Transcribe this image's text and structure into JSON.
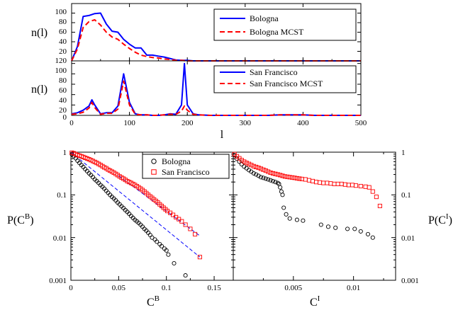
{
  "chart_data": [
    {
      "id": "bologna",
      "type": "line",
      "ylabel": "n(l)",
      "xlim": [
        0,
        500
      ],
      "ylim": [
        0,
        120
      ],
      "ytick_labels": [
        "120",
        "100",
        "80",
        "60",
        "40",
        "20"
      ],
      "series": [
        {
          "name": "Bologna",
          "color": "#0000ff",
          "dash": "solid",
          "x": [
            0,
            10,
            20,
            30,
            40,
            50,
            60,
            70,
            80,
            90,
            100,
            110,
            120,
            130,
            140,
            150,
            160,
            170,
            180,
            190,
            200,
            210,
            220,
            240,
            260,
            280,
            300,
            320,
            340,
            360,
            380,
            400,
            420,
            440,
            460,
            480,
            500
          ],
          "y": [
            0,
            30,
            93,
            95,
            99,
            100,
            77,
            62,
            60,
            45,
            35,
            27,
            27,
            12,
            12,
            10,
            8,
            5,
            2,
            1,
            1,
            0,
            0,
            0,
            0,
            0,
            0,
            0,
            0,
            0,
            0,
            0,
            0,
            0,
            0,
            0,
            0
          ]
        },
        {
          "name": "Bologna MCST",
          "color": "#ff0000",
          "dash": "dashed",
          "x": [
            0,
            10,
            20,
            30,
            40,
            50,
            60,
            70,
            80,
            90,
            100,
            110,
            120,
            130,
            140,
            150,
            160,
            170,
            180,
            190,
            200,
            220,
            240,
            260,
            280,
            300,
            320,
            340,
            360,
            380,
            400,
            420,
            440,
            460,
            480,
            500
          ],
          "y": [
            0,
            25,
            70,
            82,
            86,
            75,
            60,
            50,
            45,
            35,
            26,
            18,
            12,
            9,
            7,
            6,
            4,
            3,
            1,
            1,
            0,
            0,
            0,
            0,
            0,
            0,
            0,
            0,
            0,
            0,
            0,
            0,
            0,
            0,
            0,
            0
          ]
        }
      ]
    },
    {
      "id": "sanfrancisco",
      "type": "line",
      "xlabel": "l",
      "ylabel": "n(l)",
      "xlim": [
        0,
        500
      ],
      "ylim": [
        0,
        105
      ],
      "xtick_labels": [
        "0",
        "100",
        "200",
        "300",
        "400",
        "500"
      ],
      "ytick_labels": [
        "100",
        "80",
        "60",
        "40",
        "20",
        "0"
      ],
      "series": [
        {
          "name": "San Francisco",
          "color": "#0000ff",
          "dash": "solid",
          "x": [
            0,
            10,
            20,
            30,
            35,
            40,
            50,
            60,
            70,
            80,
            90,
            100,
            110,
            120,
            130,
            140,
            150,
            160,
            170,
            180,
            190,
            195,
            200,
            210,
            220,
            240,
            260,
            280,
            300,
            320,
            340,
            360,
            380,
            400,
            420,
            440,
            460,
            480,
            500
          ],
          "y": [
            3,
            5,
            10,
            18,
            30,
            20,
            3,
            5,
            5,
            18,
            80,
            25,
            3,
            1,
            1,
            0,
            0,
            1,
            3,
            2,
            20,
            100,
            20,
            3,
            1,
            0,
            0,
            0,
            0,
            0,
            0,
            1,
            1,
            1,
            0,
            0,
            0,
            0,
            0
          ]
        },
        {
          "name": "San Francisco MCST",
          "color": "#ff0000",
          "dash": "dashed",
          "x": [
            0,
            10,
            20,
            30,
            35,
            40,
            50,
            60,
            70,
            80,
            90,
            100,
            110,
            120,
            130,
            140,
            150,
            160,
            170,
            180,
            190,
            195,
            200,
            210,
            220,
            240,
            260,
            280,
            300,
            320,
            340,
            360,
            380,
            400,
            420,
            440,
            460,
            480,
            500
          ],
          "y": [
            2,
            3,
            6,
            14,
            25,
            15,
            2,
            4,
            4,
            12,
            66,
            20,
            2,
            1,
            1,
            0,
            0,
            1,
            2,
            2,
            8,
            18,
            10,
            2,
            1,
            0,
            0,
            0,
            0,
            0,
            0,
            1,
            1,
            1,
            0,
            0,
            0,
            0,
            0
          ]
        }
      ]
    },
    {
      "id": "cb",
      "type": "scatter",
      "xlabel": "C^B",
      "ylabel": "P(C^B)",
      "yscale": "log",
      "xlim": [
        0,
        0.17
      ],
      "ylim": [
        0.001,
        1
      ],
      "xtick_labels": [
        "0",
        "0.05",
        "0.1",
        "0.15"
      ],
      "ytick_labels": [
        "1",
        "0.1",
        "0.01",
        "0.001"
      ],
      "series": [
        {
          "name": "Bologna",
          "marker": "circle",
          "color": "#000000",
          "x": [
            0.001,
            0.003,
            0.005,
            0.007,
            0.009,
            0.011,
            0.013,
            0.015,
            0.017,
            0.019,
            0.021,
            0.023,
            0.025,
            0.027,
            0.029,
            0.031,
            0.033,
            0.035,
            0.037,
            0.039,
            0.041,
            0.043,
            0.045,
            0.047,
            0.049,
            0.051,
            0.053,
            0.055,
            0.057,
            0.059,
            0.061,
            0.063,
            0.065,
            0.067,
            0.069,
            0.071,
            0.073,
            0.075,
            0.077,
            0.079,
            0.081,
            0.083,
            0.085,
            0.088,
            0.09,
            0.093,
            0.095,
            0.098,
            0.1,
            0.102,
            0.108,
            0.12
          ],
          "y": [
            0.9,
            0.8,
            0.72,
            0.63,
            0.56,
            0.5,
            0.45,
            0.4,
            0.36,
            0.32,
            0.29,
            0.26,
            0.23,
            0.21,
            0.19,
            0.17,
            0.155,
            0.14,
            0.125,
            0.112,
            0.1,
            0.09,
            0.082,
            0.074,
            0.066,
            0.06,
            0.054,
            0.049,
            0.044,
            0.04,
            0.036,
            0.032,
            0.029,
            0.026,
            0.024,
            0.022,
            0.02,
            0.018,
            0.016,
            0.0145,
            0.013,
            0.0115,
            0.01,
            0.009,
            0.008,
            0.007,
            0.0063,
            0.0055,
            0.005,
            0.004,
            0.0025,
            0.0013
          ]
        },
        {
          "name": "San Francisco",
          "marker": "square",
          "color": "#ff0000",
          "x": [
            0.001,
            0.003,
            0.005,
            0.007,
            0.009,
            0.011,
            0.013,
            0.015,
            0.017,
            0.019,
            0.021,
            0.023,
            0.025,
            0.027,
            0.029,
            0.031,
            0.033,
            0.035,
            0.037,
            0.039,
            0.041,
            0.043,
            0.045,
            0.047,
            0.049,
            0.051,
            0.053,
            0.055,
            0.057,
            0.059,
            0.061,
            0.063,
            0.065,
            0.067,
            0.069,
            0.071,
            0.073,
            0.075,
            0.077,
            0.079,
            0.081,
            0.083,
            0.085,
            0.087,
            0.089,
            0.091,
            0.093,
            0.095,
            0.097,
            0.099,
            0.101,
            0.104,
            0.107,
            0.11,
            0.113,
            0.116,
            0.12,
            0.125,
            0.13,
            0.135
          ],
          "y": [
            0.97,
            0.94,
            0.9,
            0.86,
            0.83,
            0.8,
            0.77,
            0.74,
            0.71,
            0.68,
            0.65,
            0.62,
            0.59,
            0.56,
            0.53,
            0.5,
            0.47,
            0.44,
            0.42,
            0.39,
            0.37,
            0.35,
            0.33,
            0.31,
            0.29,
            0.27,
            0.255,
            0.24,
            0.225,
            0.21,
            0.2,
            0.19,
            0.18,
            0.17,
            0.16,
            0.15,
            0.14,
            0.13,
            0.12,
            0.11,
            0.1,
            0.092,
            0.085,
            0.078,
            0.072,
            0.066,
            0.06,
            0.055,
            0.05,
            0.046,
            0.042,
            0.038,
            0.034,
            0.03,
            0.027,
            0.024,
            0.02,
            0.016,
            0.012,
            0.0035
          ]
        }
      ],
      "fit_lines": [
        {
          "x": [
            0.0,
            0.135
          ],
          "y": [
            1.0,
            0.0035
          ],
          "color": "#0000ff",
          "dash": "dashed"
        },
        {
          "x": [
            0.05,
            0.135
          ],
          "y": [
            0.28,
            0.011
          ],
          "color": "#0000ff",
          "dash": "dashed"
        }
      ]
    },
    {
      "id": "ci",
      "type": "scatter",
      "xlabel": "C^I",
      "ylabel": "P(C^I)",
      "yscale": "log",
      "xlim": [
        0,
        0.0135
      ],
      "ylim": [
        0.001,
        1
      ],
      "xtick_labels": [
        "0.005",
        "0.01"
      ],
      "ytick_labels": [
        "1",
        "0.1",
        "0.01",
        "0.001"
      ],
      "series": [
        {
          "name": "Bologna",
          "marker": "circle",
          "color": "#000000",
          "x": [
            0.0001,
            0.0003,
            0.0005,
            0.0007,
            0.0009,
            0.0011,
            0.0013,
            0.0015,
            0.0017,
            0.0019,
            0.0021,
            0.0023,
            0.0025,
            0.0027,
            0.0029,
            0.0031,
            0.0033,
            0.0035,
            0.0037,
            0.0038,
            0.0039,
            0.004,
            0.0041,
            0.0042,
            0.0044,
            0.0047,
            0.0053,
            0.0058,
            0.0073,
            0.0079,
            0.0085,
            0.0095,
            0.0101,
            0.0106,
            0.0112,
            0.0116
          ],
          "y": [
            0.85,
            0.7,
            0.6,
            0.52,
            0.46,
            0.42,
            0.38,
            0.35,
            0.32,
            0.3,
            0.28,
            0.26,
            0.25,
            0.24,
            0.23,
            0.22,
            0.21,
            0.2,
            0.19,
            0.18,
            0.15,
            0.12,
            0.1,
            0.05,
            0.035,
            0.028,
            0.026,
            0.025,
            0.02,
            0.018,
            0.017,
            0.016,
            0.016,
            0.014,
            0.012,
            0.01
          ]
        },
        {
          "name": "San Francisco",
          "marker": "square",
          "color": "#ff0000",
          "x": [
            0.0001,
            0.0003,
            0.0005,
            0.0007,
            0.0009,
            0.0011,
            0.0013,
            0.0015,
            0.0017,
            0.0019,
            0.0021,
            0.0023,
            0.0025,
            0.0027,
            0.0029,
            0.0031,
            0.0033,
            0.0035,
            0.0037,
            0.0039,
            0.0041,
            0.0043,
            0.0045,
            0.0047,
            0.0049,
            0.0051,
            0.0053,
            0.0055,
            0.0057,
            0.006,
            0.0063,
            0.0066,
            0.0069,
            0.0072,
            0.0075,
            0.0078,
            0.0081,
            0.0084,
            0.0087,
            0.009,
            0.0093,
            0.0096,
            0.0099,
            0.0102,
            0.0106,
            0.011,
            0.0113,
            0.0116,
            0.0119,
            0.0122
          ],
          "y": [
            0.9,
            0.8,
            0.72,
            0.65,
            0.6,
            0.56,
            0.53,
            0.5,
            0.47,
            0.45,
            0.43,
            0.41,
            0.39,
            0.37,
            0.35,
            0.33,
            0.32,
            0.31,
            0.3,
            0.29,
            0.28,
            0.27,
            0.265,
            0.26,
            0.255,
            0.25,
            0.245,
            0.24,
            0.235,
            0.23,
            0.22,
            0.21,
            0.2,
            0.195,
            0.19,
            0.19,
            0.185,
            0.18,
            0.18,
            0.18,
            0.175,
            0.17,
            0.17,
            0.165,
            0.16,
            0.155,
            0.15,
            0.12,
            0.09,
            0.055
          ]
        }
      ]
    }
  ]
}
